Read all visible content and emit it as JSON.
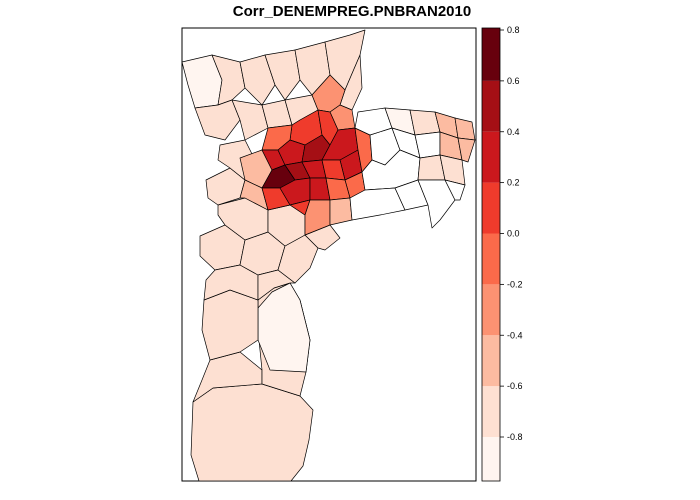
{
  "title": "Corr_DENEMPREG.PNBRAN2010",
  "legend": {
    "breaks": [
      -1.0,
      -0.8,
      -0.6,
      -0.4,
      -0.2,
      0.0,
      0.2,
      0.4,
      0.6,
      0.8
    ],
    "ticks": [
      {
        "value": 0.8,
        "label": "0.8"
      },
      {
        "value": 0.6,
        "label": "0.6"
      },
      {
        "value": 0.4,
        "label": "0.4"
      },
      {
        "value": 0.2,
        "label": "0.2"
      },
      {
        "value": 0.0,
        "label": "0.0"
      },
      {
        "value": -0.2,
        "label": "-0.2"
      },
      {
        "value": -0.4,
        "label": "-0.4"
      },
      {
        "value": -0.6,
        "label": "-0.6"
      },
      {
        "value": -0.8,
        "label": "-0.8"
      }
    ],
    "colors": [
      "#fff5f0",
      "#fee0d2",
      "#fcbba1",
      "#fc9272",
      "#fb6a4a",
      "#ef3b2c",
      "#cb181d",
      "#a50f15",
      "#67000d"
    ]
  },
  "chart_data": {
    "type": "heatmap",
    "title": "Corr_DENEMPREG.PNBRAN2010",
    "scale_min": -1.0,
    "scale_max": 0.8,
    "legend_position": "right"
  }
}
